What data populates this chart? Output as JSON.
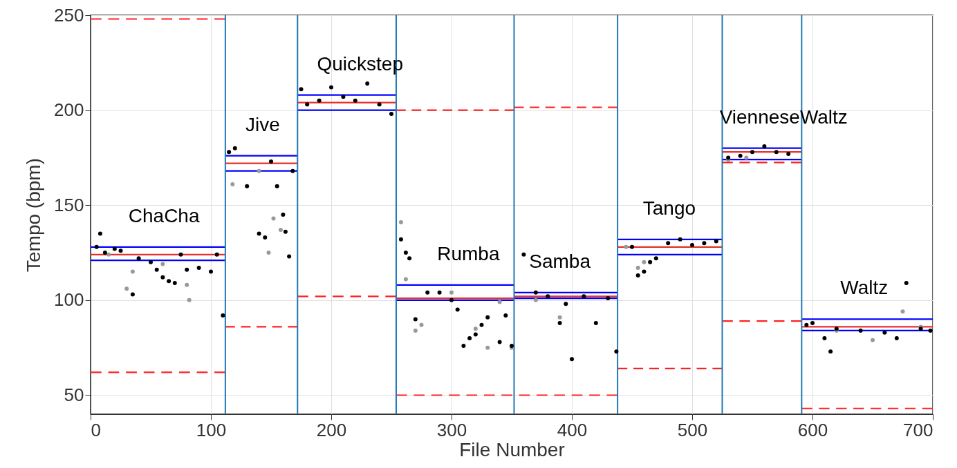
{
  "chart_data": {
    "type": "scatter",
    "xlabel": "File Number",
    "ylabel": "Tempo (bpm)",
    "xlim": [
      0,
      700
    ],
    "ylim": [
      40,
      250
    ],
    "xticks": [
      0,
      100,
      200,
      300,
      400,
      500,
      600,
      700
    ],
    "yticks": [
      50,
      100,
      150,
      200,
      250
    ],
    "grid": true,
    "series": [
      {
        "type": "line",
        "color": "#ff2020",
        "line_style": "dashed",
        "x": [
          0,
          112
        ],
        "values": [
          248,
          248
        ]
      },
      {
        "type": "line",
        "color": "#ff2020",
        "line_style": "dashed",
        "x": [
          0,
          112
        ],
        "values": [
          62,
          62
        ]
      },
      {
        "type": "line",
        "color": "#ff2020",
        "line_style": "dashed",
        "x": [
          112,
          172
        ],
        "values": [
          86,
          86
        ]
      },
      {
        "type": "line",
        "color": "#ff2020",
        "line_style": "dashed",
        "x": [
          172,
          254
        ],
        "values": [
          102,
          102
        ]
      },
      {
        "type": "line",
        "color": "#ff2020",
        "line_style": "dashed",
        "x": [
          254,
          352
        ],
        "values": [
          200,
          200
        ]
      },
      {
        "type": "line",
        "color": "#ff2020",
        "line_style": "dashed",
        "x": [
          254,
          438
        ],
        "values": [
          50,
          50
        ]
      },
      {
        "type": "line",
        "color": "#ff2020",
        "line_style": "dashed",
        "x": [
          352,
          438
        ],
        "values": [
          201.5,
          201.5
        ]
      },
      {
        "type": "line",
        "color": "#ff2020",
        "line_style": "dashed",
        "x": [
          438,
          525
        ],
        "values": [
          64,
          64
        ]
      },
      {
        "type": "line",
        "color": "#ff2020",
        "line_style": "dashed",
        "x": [
          525,
          591
        ],
        "values": [
          172.5,
          172.5
        ]
      },
      {
        "type": "line",
        "color": "#ff2020",
        "line_style": "dashed",
        "x": [
          525,
          591
        ],
        "values": [
          89,
          89
        ]
      },
      {
        "type": "line",
        "color": "#ff2020",
        "line_style": "dashed",
        "x": [
          591,
          700
        ],
        "values": [
          43,
          43
        ]
      },
      {
        "type": "line",
        "color": "#0000ff",
        "x": [
          0,
          112
        ],
        "values": [
          128,
          128
        ]
      },
      {
        "type": "line",
        "color": "#0000ff",
        "x": [
          0,
          112
        ],
        "values": [
          121,
          121
        ]
      },
      {
        "type": "line",
        "color": "#e8302a",
        "x": [
          0,
          112
        ],
        "values": [
          124,
          124
        ]
      },
      {
        "type": "line",
        "color": "#0000ff",
        "x": [
          112,
          172
        ],
        "values": [
          176,
          176
        ]
      },
      {
        "type": "line",
        "color": "#0000ff",
        "x": [
          112,
          172
        ],
        "values": [
          168,
          168
        ]
      },
      {
        "type": "line",
        "color": "#e8302a",
        "x": [
          112,
          172
        ],
        "values": [
          172,
          172
        ]
      },
      {
        "type": "line",
        "color": "#0000ff",
        "x": [
          172,
          254
        ],
        "values": [
          208,
          208
        ]
      },
      {
        "type": "line",
        "color": "#0000ff",
        "x": [
          172,
          254
        ],
        "values": [
          200,
          200
        ]
      },
      {
        "type": "line",
        "color": "#e8302a",
        "x": [
          172,
          254
        ],
        "values": [
          204,
          204
        ]
      },
      {
        "type": "line",
        "color": "#0000ff",
        "x": [
          254,
          352
        ],
        "values": [
          108,
          108
        ]
      },
      {
        "type": "line",
        "color": "#0000ff",
        "x": [
          254,
          352
        ],
        "values": [
          100,
          100
        ]
      },
      {
        "type": "line",
        "color": "#e8302a",
        "x": [
          254,
          352
        ],
        "values": [
          101,
          101
        ]
      },
      {
        "type": "line",
        "color": "#0000ff",
        "x": [
          352,
          438
        ],
        "values": [
          104,
          104
        ]
      },
      {
        "type": "line",
        "color": "#0000ff",
        "x": [
          352,
          438
        ],
        "values": [
          101,
          101
        ]
      },
      {
        "type": "line",
        "color": "#e8302a",
        "x": [
          352,
          438
        ],
        "values": [
          102,
          102
        ]
      },
      {
        "type": "line",
        "color": "#0000ff",
        "x": [
          438,
          525
        ],
        "values": [
          132,
          132
        ]
      },
      {
        "type": "line",
        "color": "#0000ff",
        "x": [
          438,
          525
        ],
        "values": [
          124,
          124
        ]
      },
      {
        "type": "line",
        "color": "#e8302a",
        "x": [
          438,
          525
        ],
        "values": [
          128,
          128
        ]
      },
      {
        "type": "line",
        "color": "#0000ff",
        "x": [
          525,
          591
        ],
        "values": [
          180,
          180
        ]
      },
      {
        "type": "line",
        "color": "#0000ff",
        "x": [
          525,
          591
        ],
        "values": [
          174,
          174
        ]
      },
      {
        "type": "line",
        "color": "#e8302a",
        "x": [
          525,
          591
        ],
        "values": [
          178,
          178
        ]
      },
      {
        "type": "line",
        "color": "#0000ff",
        "x": [
          591,
          700
        ],
        "values": [
          90,
          90
        ]
      },
      {
        "type": "line",
        "color": "#0000ff",
        "x": [
          591,
          700
        ],
        "values": [
          84,
          84
        ]
      },
      {
        "type": "line",
        "color": "#e8302a",
        "x": [
          591,
          700
        ],
        "values": [
          86,
          86
        ]
      },
      {
        "color": "#999999",
        "x": [
          15,
          30,
          35,
          60,
          80,
          82,
          118,
          140,
          148,
          152,
          158,
          258,
          262,
          270,
          275,
          300,
          320,
          330,
          340,
          350,
          370,
          390,
          445,
          455,
          460,
          530,
          545,
          620,
          650,
          675,
          690
        ],
        "values": [
          124,
          106,
          115,
          119,
          108,
          100,
          161,
          168,
          125,
          143,
          137,
          141,
          111,
          84,
          87,
          104,
          85,
          75,
          99,
          75,
          100,
          91,
          128,
          117,
          120,
          174,
          175,
          84,
          79,
          94,
          86
        ]
      },
      {
        "color": "#000000",
        "x": [
          5,
          8,
          12,
          20,
          25,
          35,
          40,
          50,
          55,
          60,
          65,
          70,
          75,
          80,
          90,
          100,
          105,
          110,
          115,
          120,
          130,
          140,
          145,
          150,
          155,
          160,
          162,
          165,
          168,
          175,
          180,
          190,
          200,
          210,
          220,
          230,
          240,
          250,
          258,
          262,
          265,
          270,
          280,
          290,
          300,
          305,
          310,
          315,
          320,
          325,
          330,
          340,
          345,
          350,
          360,
          370,
          380,
          390,
          395,
          400,
          410,
          420,
          430,
          437,
          450,
          455,
          460,
          465,
          470,
          480,
          490,
          500,
          510,
          520,
          530,
          540,
          550,
          560,
          570,
          580,
          595,
          600,
          610,
          615,
          620,
          640,
          660,
          670,
          678,
          690,
          698
        ],
        "values": [
          128,
          135,
          125,
          127,
          126,
          103,
          122,
          120,
          116,
          112,
          110,
          109,
          124,
          116,
          117,
          115,
          124,
          92,
          178,
          180,
          160,
          135,
          133,
          173,
          160,
          145,
          136,
          123,
          168,
          211,
          203,
          205,
          212,
          207,
          205,
          214,
          203,
          198,
          132,
          125,
          122,
          90,
          104,
          104,
          100,
          95,
          76,
          80,
          82,
          87,
          91,
          78,
          92,
          76,
          124,
          104,
          102,
          88,
          98,
          69,
          102,
          88,
          101,
          73,
          128,
          113,
          115,
          120,
          122,
          130,
          132,
          129,
          130,
          131,
          175,
          176,
          178,
          181,
          178,
          177,
          87,
          88,
          80,
          73,
          85,
          84,
          83,
          80,
          109,
          85,
          84
        ]
      }
    ],
    "ref_lines": [
      {
        "axis": "x",
        "value": 112,
        "color": "#1f78b4"
      },
      {
        "axis": "x",
        "value": 172,
        "color": "#1f78b4"
      },
      {
        "axis": "x",
        "value": 254,
        "color": "#1f78b4"
      },
      {
        "axis": "x",
        "value": 352,
        "color": "#1f78b4"
      },
      {
        "axis": "x",
        "value": 438,
        "color": "#1f78b4"
      },
      {
        "axis": "x",
        "value": 525,
        "color": "#1f78b4"
      },
      {
        "axis": "x",
        "value": 591,
        "color": "#1f78b4"
      }
    ],
    "annotations": [
      {
        "text": "ChaCha",
        "x": 61,
        "y": 128
      },
      {
        "text": "Jive",
        "x": 143,
        "y": 176
      },
      {
        "text": "Quickstep",
        "x": 224,
        "y": 208
      },
      {
        "text": "Rumba",
        "x": 314,
        "y": 108
      },
      {
        "text": "Samba",
        "x": 390,
        "y": 104
      },
      {
        "text": "Tango",
        "x": 481,
        "y": 132
      },
      {
        "text": "VienneseWaltz",
        "x": 576,
        "y": 180
      },
      {
        "text": "Waltz",
        "x": 643,
        "y": 90
      }
    ]
  }
}
